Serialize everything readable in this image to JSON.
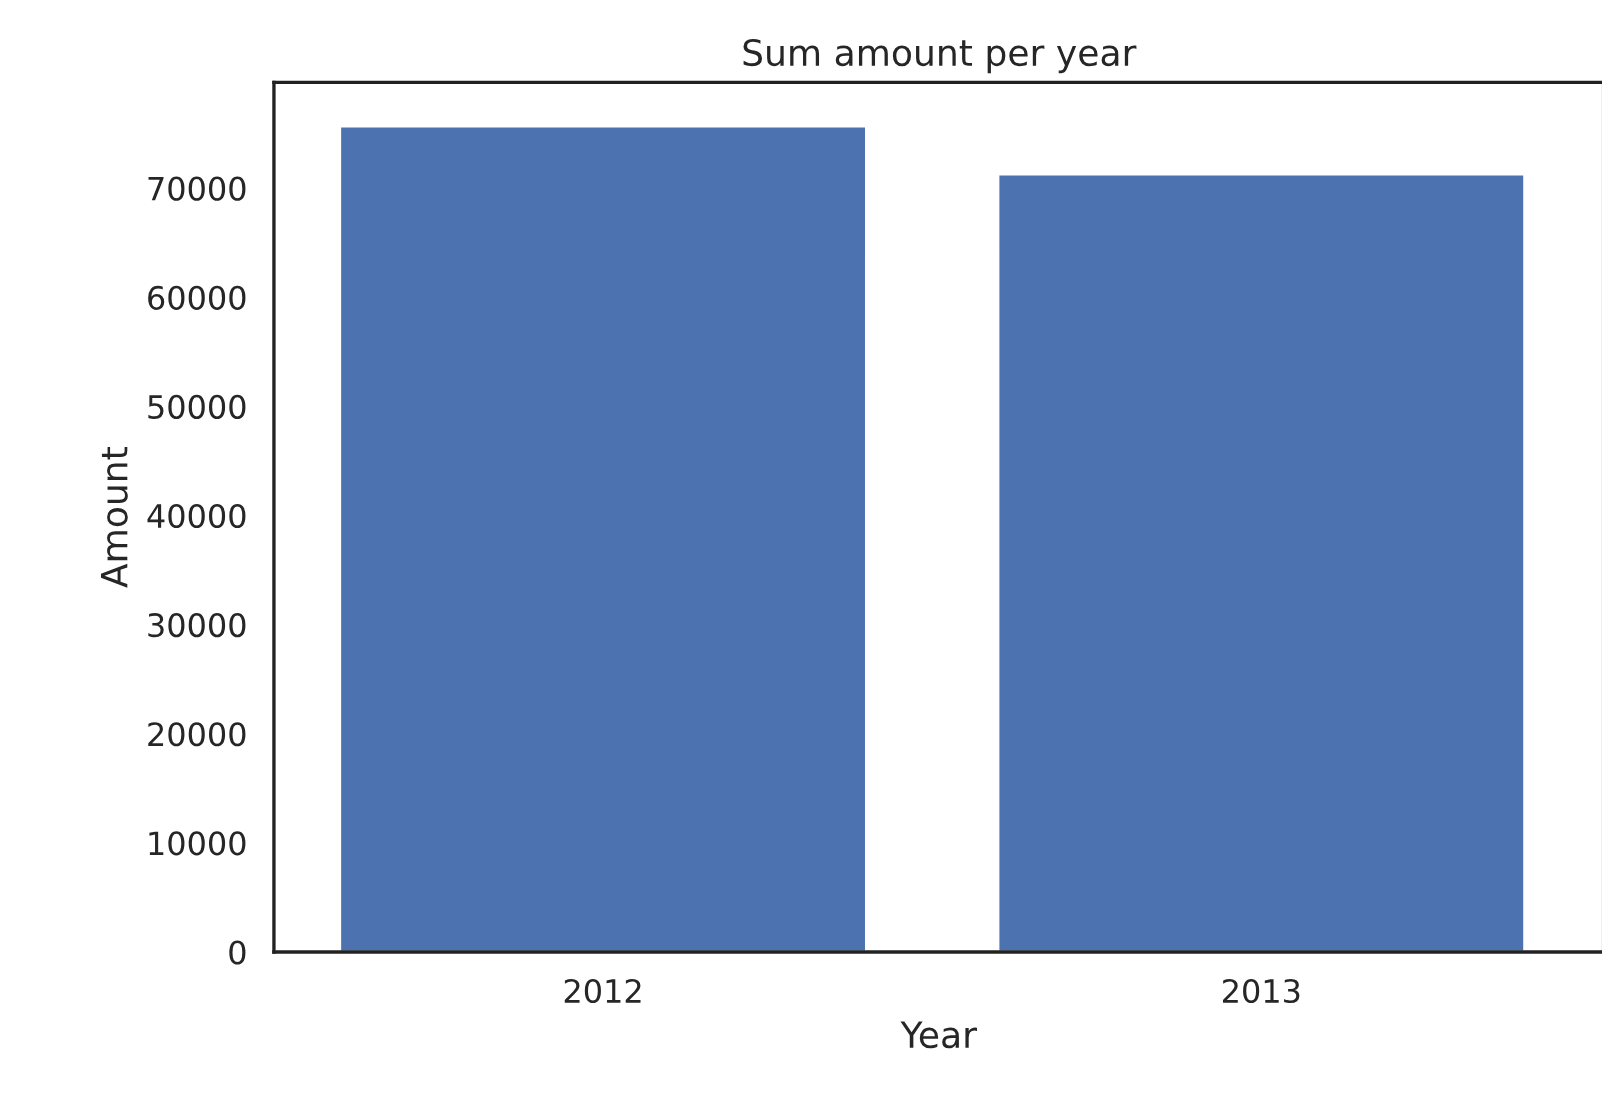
{
  "chart_data": {
    "type": "bar",
    "title": "Sum amount per year",
    "xlabel": "Year",
    "ylabel": "Amount",
    "categories": [
      "2012",
      "2013"
    ],
    "values": [
      75700,
      71300
    ],
    "color": "#4c72b0",
    "ylim": [
      0,
      79700
    ],
    "yticks": [
      0,
      10000,
      20000,
      30000,
      40000,
      50000,
      60000,
      70000
    ],
    "grid": false
  }
}
